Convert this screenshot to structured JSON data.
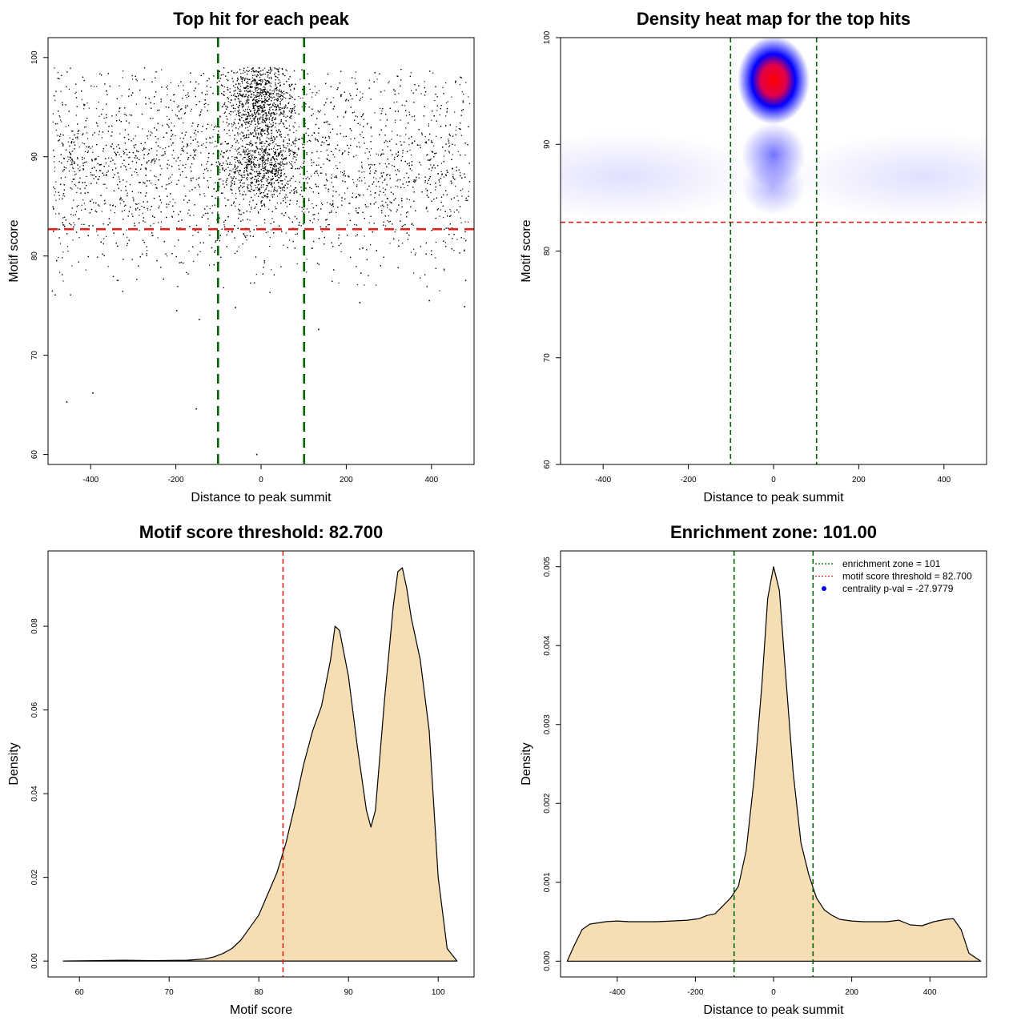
{
  "chart_data": [
    {
      "type": "scatter",
      "title": "Top hit for each peak",
      "xlabel": "Distance to peak summit",
      "ylabel": "Motif score",
      "xlim": [
        -500,
        500
      ],
      "ylim": [
        59,
        102
      ],
      "xticks": [
        "-400",
        "-200",
        "0",
        "200",
        "400"
      ],
      "yticks": [
        "60",
        "70",
        "80",
        "90",
        "100"
      ],
      "approx_point_count": 9000,
      "point_color": "#000000",
      "clusters": [
        {
          "description": "central high-score cluster",
          "x_center": 0,
          "x_spread": 40,
          "y_center": 95.5,
          "y_spread": 2
        },
        {
          "description": "central secondary cluster",
          "x_center": 0,
          "x_spread": 45,
          "y_center": 89,
          "y_spread": 1.8
        },
        {
          "description": "uniform background",
          "x_range": [
            -490,
            490
          ],
          "y_center": 89,
          "y_spread": 5
        }
      ],
      "outliers": [
        {
          "x": -456,
          "y": 65.3
        },
        {
          "x": -395,
          "y": 66.2
        },
        {
          "x": -152,
          "y": 64.6
        },
        {
          "x": -10,
          "y": 60.0
        },
        {
          "x": -198,
          "y": 74.5
        },
        {
          "x": -145,
          "y": 73.6
        },
        {
          "x": -60,
          "y": 74.8
        },
        {
          "x": 135,
          "y": 72.6
        },
        {
          "x": 232,
          "y": 75.3
        },
        {
          "x": 478,
          "y": 74.9
        },
        {
          "x": 395,
          "y": 75.5
        }
      ],
      "hlines": [
        {
          "y": 82.7,
          "color": "#e0201c",
          "style": "dashed"
        }
      ],
      "vlines": [
        {
          "x": -101,
          "color": "#006400",
          "style": "dashed"
        },
        {
          "x": 101,
          "color": "#006400",
          "style": "dashed"
        }
      ]
    },
    {
      "type": "heatmap",
      "title": "Density heat map for the top hits",
      "xlabel": "Distance to peak summit",
      "ylabel": "Motif score",
      "xlim": [
        -500,
        500
      ],
      "ylim": [
        60,
        100
      ],
      "xticks": [
        "-400",
        "-200",
        "0",
        "200",
        "400"
      ],
      "yticks": [
        "60",
        "70",
        "80",
        "90",
        "100"
      ],
      "color_scale": [
        "#ffffff",
        "#0000ff",
        "#ff0000"
      ],
      "hotspots": [
        {
          "x": 0,
          "y": 96,
          "intensity": 1.0
        },
        {
          "x": 0,
          "y": 89,
          "intensity": 0.55
        },
        {
          "x": 0,
          "y": 86,
          "intensity": 0.3
        },
        {
          "x": -350,
          "y": 87,
          "intensity": 0.12
        },
        {
          "x": 350,
          "y": 87,
          "intensity": 0.12
        }
      ],
      "hlines": [
        {
          "y": 82.7,
          "color": "#e0201c",
          "style": "dashed"
        }
      ],
      "vlines": [
        {
          "x": -101,
          "color": "#006400",
          "style": "dashed"
        },
        {
          "x": 101,
          "color": "#006400",
          "style": "dashed"
        }
      ]
    },
    {
      "type": "area",
      "title": "Motif score threshold: 82.700",
      "xlabel": "Motif score",
      "ylabel": "Density",
      "xlim": [
        56.5,
        104
      ],
      "ylim": [
        -0.0038,
        0.098
      ],
      "xticks": [
        "60",
        "70",
        "80",
        "90",
        "100"
      ],
      "yticks": [
        "0.00",
        "0.02",
        "0.04",
        "0.06",
        "0.08"
      ],
      "fill_color": "#f5deb3",
      "x": [
        58.2,
        62,
        65,
        68,
        72,
        74,
        75,
        76,
        77,
        78,
        79,
        80,
        81,
        82,
        83,
        84,
        85,
        86,
        87,
        88,
        88.5,
        89,
        90,
        91,
        92,
        92.5,
        93,
        94,
        95,
        95.5,
        96,
        96.5,
        97,
        98,
        99,
        100,
        101,
        102.1
      ],
      "values": [
        0,
        0.0001,
        0.0002,
        0.0001,
        0.0002,
        0.0005,
        0.001,
        0.0018,
        0.003,
        0.005,
        0.008,
        0.011,
        0.016,
        0.021,
        0.028,
        0.037,
        0.047,
        0.055,
        0.061,
        0.072,
        0.08,
        0.079,
        0.068,
        0.051,
        0.036,
        0.032,
        0.036,
        0.062,
        0.085,
        0.093,
        0.094,
        0.089,
        0.082,
        0.072,
        0.055,
        0.02,
        0.003,
        0
      ],
      "vlines": [
        {
          "x": 82.7,
          "color": "#e0201c",
          "style": "dashed"
        }
      ]
    },
    {
      "type": "area",
      "title": "Enrichment zone: 101.00",
      "xlabel": "Distance to peak summit",
      "ylabel": "Density",
      "xlim": [
        -545,
        545
      ],
      "ylim": [
        -0.0002,
        0.0052
      ],
      "xticks": [
        "-400",
        "-200",
        "0",
        "200",
        "400"
      ],
      "yticks": [
        "0.000",
        "0.001",
        "0.002",
        "0.003",
        "0.004",
        "0.005"
      ],
      "fill_color": "#f5deb3",
      "x": [
        -528,
        -510,
        -490,
        -470,
        -430,
        -400,
        -370,
        -340,
        -300,
        -260,
        -220,
        -190,
        -170,
        -150,
        -130,
        -110,
        -90,
        -70,
        -50,
        -30,
        -15,
        0,
        15,
        30,
        50,
        70,
        90,
        110,
        130,
        150,
        170,
        200,
        230,
        260,
        290,
        320,
        350,
        380,
        410,
        440,
        460,
        480,
        500,
        530
      ],
      "values": [
        0.0,
        0.0002,
        0.0004,
        0.00047,
        0.0005,
        0.00051,
        0.0005,
        0.0005,
        0.0005,
        0.00051,
        0.00052,
        0.00054,
        0.00058,
        0.0006,
        0.0007,
        0.0008,
        0.00095,
        0.0014,
        0.0023,
        0.0035,
        0.0046,
        0.005,
        0.0047,
        0.0037,
        0.0024,
        0.0015,
        0.0011,
        0.0008,
        0.00065,
        0.00058,
        0.00053,
        0.00051,
        0.0005,
        0.0005,
        0.0005,
        0.00052,
        0.00046,
        0.00045,
        0.0005,
        0.00053,
        0.00054,
        0.0004,
        0.0001,
        0
      ],
      "vlines": [
        {
          "x": -101,
          "color": "#006400",
          "style": "dashed"
        },
        {
          "x": 101,
          "color": "#006400",
          "style": "dashed"
        }
      ],
      "legend": {
        "position": "top-right",
        "entries": [
          {
            "label": "enrichment zone = 101",
            "color": "#006400",
            "kind": "dotted-line"
          },
          {
            "label": "motif score threshold = 82.700",
            "color": "#e0201c",
            "kind": "dotted-line"
          },
          {
            "label": "centrality p-val = -27.9779",
            "color": "#0000ff",
            "kind": "point"
          }
        ]
      }
    }
  ]
}
